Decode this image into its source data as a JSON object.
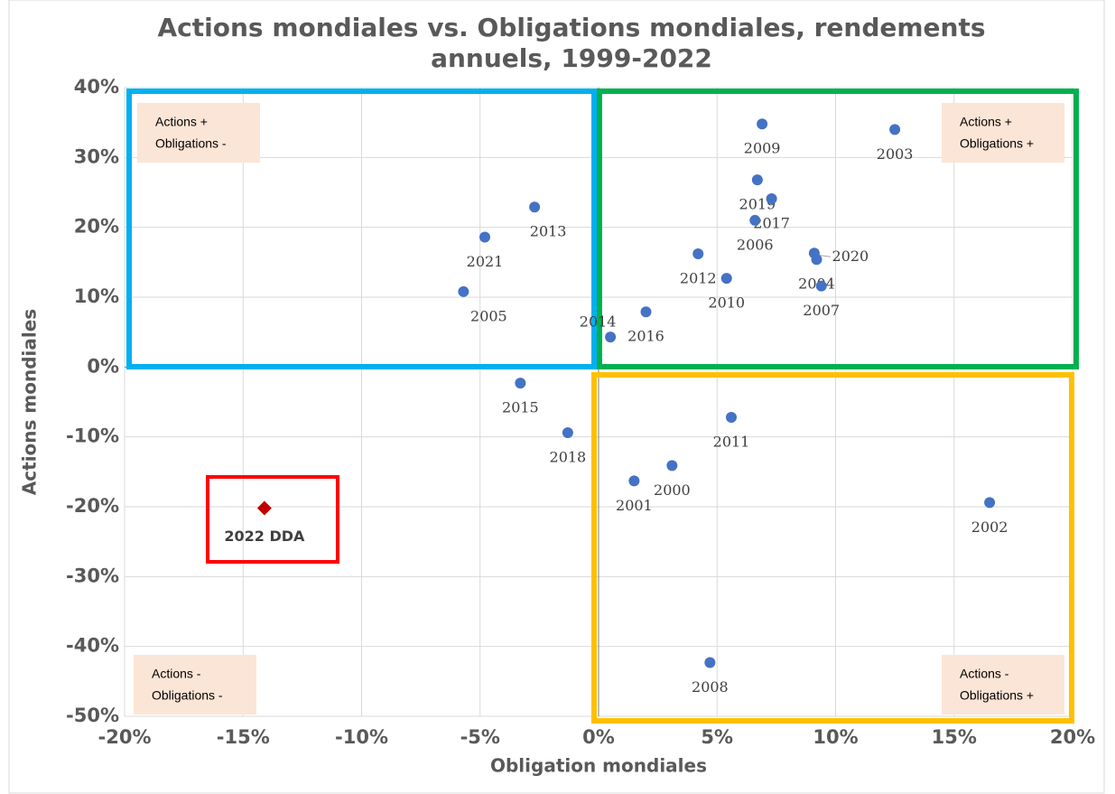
{
  "chart_data": {
    "type": "scatter",
    "title": "Actions mondiales vs. Obligations mondiales, rendements annuels, 1999-2022",
    "x_label": "Obligation mondiales",
    "y_label": "Actions mondiales",
    "xlim": [
      -20,
      20
    ],
    "ylim": [
      -50,
      40
    ],
    "xticks": [
      {
        "value": -20,
        "label": "-20%"
      },
      {
        "value": -15,
        "label": "-15%"
      },
      {
        "value": -10,
        "label": "-10%"
      },
      {
        "value": -5,
        "label": "-5%"
      },
      {
        "value": 0,
        "label": "0%"
      },
      {
        "value": 5,
        "label": "5%"
      },
      {
        "value": 10,
        "label": "10%"
      },
      {
        "value": 15,
        "label": "15%"
      },
      {
        "value": 20,
        "label": "20%"
      }
    ],
    "yticks": [
      {
        "value": -50,
        "label": "-50%"
      },
      {
        "value": -40,
        "label": "-40%"
      },
      {
        "value": -30,
        "label": "-30%"
      },
      {
        "value": -20,
        "label": "-20%"
      },
      {
        "value": -10,
        "label": "-10%"
      },
      {
        "value": 0,
        "label": "0%"
      },
      {
        "value": 10,
        "label": "10%"
      },
      {
        "value": 20,
        "label": "20%"
      },
      {
        "value": 30,
        "label": "30%"
      },
      {
        "value": 40,
        "label": "40%"
      }
    ],
    "grid": true,
    "series": [
      {
        "color": "#4472c4",
        "marker": "circle",
        "labels": [
          "2009",
          "2003",
          "2019",
          "2017",
          "2006",
          "2012",
          "2010",
          "2020",
          "2004",
          "2007",
          "2014",
          "2016",
          "2013",
          "2021",
          "2005",
          "2015",
          "2018",
          "2011",
          "2001",
          "2000",
          "2002",
          "2008"
        ],
        "x": [
          6.9,
          12.5,
          6.7,
          7.3,
          6.6,
          4.2,
          5.4,
          9.1,
          9.2,
          9.4,
          0.5,
          2.0,
          -2.7,
          -4.8,
          -5.7,
          -3.3,
          -1.3,
          5.6,
          1.5,
          3.1,
          16.5,
          4.7
        ],
        "values": [
          34.8,
          34.0,
          26.8,
          24.1,
          21.0,
          16.2,
          12.7,
          16.3,
          15.4,
          11.6,
          4.3,
          7.9,
          22.9,
          18.6,
          10.8,
          -2.3,
          -9.4,
          -7.2,
          -16.3,
          -14.1,
          -19.4,
          -42.3
        ]
      },
      {
        "name": "2022 DDA",
        "color": "#c00000",
        "marker": "diamond",
        "x": [
          -14.1
        ],
        "values": [
          -20.2
        ]
      }
    ],
    "quadrants": [
      {
        "lines": [
          "Actions +",
          "Obligations -"
        ],
        "color": "#00b0f0"
      },
      {
        "lines": [
          "Actions +",
          "Obligations +"
        ],
        "color": "#00b050"
      },
      {
        "lines": [
          "Actions -",
          "Obligations +"
        ],
        "color": "#ffc000"
      },
      {
        "lines": [
          "Actions -",
          "Obligations -"
        ]
      }
    ],
    "highlight_color": "#ff0000"
  }
}
